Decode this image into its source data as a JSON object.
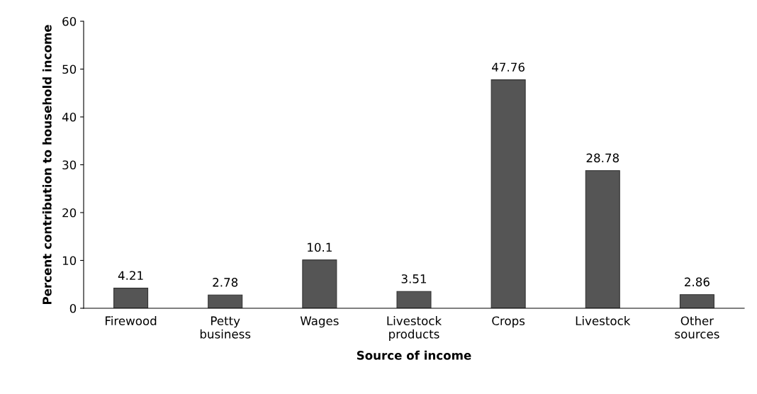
{
  "chart_data": {
    "type": "bar",
    "xlabel": "Source of income",
    "ylabel": "Percent contribution to household income",
    "categories": [
      "Firewood",
      "Petty\nbusiness",
      "Wages",
      "Livestock\nproducts",
      "Crops",
      "Livestock",
      "Other\nsources"
    ],
    "values": [
      4.21,
      2.78,
      10.1,
      3.51,
      47.76,
      28.78,
      2.86
    ],
    "color": "#555555",
    "ylim": [
      0,
      60
    ],
    "yticks": [
      0,
      10,
      20,
      30,
      40,
      50,
      60
    ],
    "grid": false,
    "data_labels": true,
    "legend": false
  }
}
